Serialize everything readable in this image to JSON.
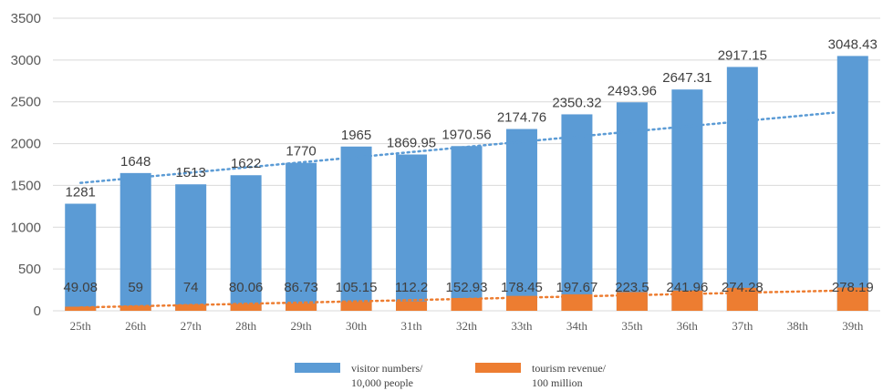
{
  "chart_data": {
    "type": "bar",
    "title": "",
    "xlabel": "",
    "ylabel": "",
    "ylim": [
      0,
      3500
    ],
    "yticks": [
      0,
      500,
      1000,
      1500,
      2000,
      2500,
      3000,
      3500
    ],
    "categories": [
      "25th",
      "26th",
      "27th",
      "28th",
      "29th",
      "30th",
      "31th",
      "32th",
      "33th",
      "34th",
      "35th",
      "36th",
      "37th",
      "38th",
      "39th"
    ],
    "series": [
      {
        "name": "visitor numbers/ 10,000 people",
        "color": "#5b9bd5",
        "values": [
          1281,
          1648,
          1513,
          1622,
          1770,
          1965,
          1869.95,
          1970.56,
          2174.76,
          2350.32,
          2493.96,
          2647.31,
          2917.15,
          null,
          3048.43
        ],
        "labels": [
          "1281",
          "1648",
          "1513",
          "1622",
          "1770",
          "1965",
          "1869.95",
          "1970.56",
          "2174.76",
          "2350.32",
          "2493.96",
          "2647.31",
          "2917.15",
          "",
          "3048.43"
        ]
      },
      {
        "name": "tourism revenue/ 100 million",
        "color": "#ed7d31",
        "values": [
          49.08,
          59,
          74,
          80.06,
          86.73,
          105.15,
          112.2,
          152.93,
          178.45,
          197.67,
          223.5,
          241.96,
          274.28,
          null,
          278.19
        ],
        "labels": [
          "49.08",
          "59",
          "74",
          "80.06",
          "86.73",
          "105.15",
          "112.2",
          "152.93",
          "178.45",
          "197.67",
          "223.5",
          "241.96",
          "274.28",
          "",
          "278.19"
        ]
      }
    ],
    "trendlines": [
      {
        "series": "visitor numbers/ 10,000 people",
        "color": "#5b9bd5",
        "style": "dotted",
        "from_value": 1530,
        "to_value": 2370
      },
      {
        "series": "tourism revenue/ 100 million",
        "color": "#ed7d31",
        "style": "dotted",
        "from_value": 40,
        "to_value": 240
      }
    ],
    "grid": true,
    "legend": {
      "position": "bottom",
      "entries": [
        {
          "line1": "visitor numbers/",
          "line2": "10,000 people",
          "color": "#5b9bd5"
        },
        {
          "line1": "tourism revenue/",
          "line2": "100 million",
          "color": "#ed7d31"
        }
      ]
    }
  }
}
